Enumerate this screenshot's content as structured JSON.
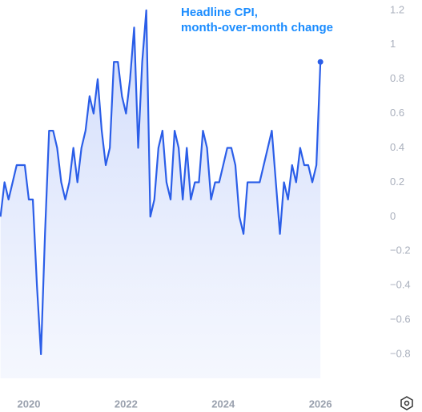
{
  "chart_data": {
    "type": "line",
    "title": [
      "Headline CPI,",
      "month-over-month change"
    ],
    "x": [
      2019.417,
      2019.5,
      2019.583,
      2019.667,
      2019.75,
      2019.833,
      2019.917,
      2020,
      2020.083,
      2020.167,
      2020.25,
      2020.333,
      2020.417,
      2020.5,
      2020.583,
      2020.667,
      2020.75,
      2020.833,
      2020.917,
      2021,
      2021.083,
      2021.167,
      2021.25,
      2021.333,
      2021.417,
      2021.5,
      2021.583,
      2021.667,
      2021.75,
      2021.833,
      2021.917,
      2022,
      2022.083,
      2022.167,
      2022.25,
      2022.333,
      2022.417,
      2022.5,
      2022.583,
      2022.667,
      2022.75,
      2022.833,
      2022.917,
      2023,
      2023.083,
      2023.167,
      2023.25,
      2023.333,
      2023.417,
      2023.5,
      2023.583,
      2023.667,
      2023.75,
      2023.833,
      2023.917,
      2024,
      2024.083,
      2024.167,
      2024.25,
      2024.333,
      2024.417,
      2024.5,
      2024.583,
      2024.667,
      2024.75,
      2024.833,
      2024.917,
      2025,
      2025.083,
      2025.167,
      2025.25,
      2025.333,
      2025.417,
      2025.5,
      2025.583,
      2025.667,
      2025.75,
      2025.833,
      2025.917,
      2026
    ],
    "series": [
      {
        "name": "Headline CPI",
        "color": "#2b5ee8",
        "values": [
          0,
          0.2,
          0.1,
          0.2,
          0.3,
          0.3,
          0.3,
          0.1,
          0.1,
          -0.4,
          -0.8,
          -0.1,
          0.5,
          0.5,
          0.4,
          0.2,
          0.1,
          0.2,
          0.4,
          0.2,
          0.4,
          0.5,
          0.7,
          0.6,
          0.8,
          0.5,
          0.3,
          0.4,
          0.9,
          0.9,
          0.7,
          0.6,
          0.8,
          1.1,
          0.4,
          0.9,
          1.2,
          0,
          0.1,
          0.4,
          0.5,
          0.2,
          0.1,
          0.5,
          0.4,
          0.1,
          0.4,
          0.1,
          0.2,
          0.2,
          0.5,
          0.4,
          0.1,
          0.2,
          0.2,
          0.3,
          0.4,
          0.4,
          0.3,
          0,
          -0.1,
          0.2,
          0.2,
          0.2,
          0.2,
          0.3,
          0.4,
          0.5,
          0.2,
          -0.1,
          0.2,
          0.1,
          0.3,
          0.2,
          0.4,
          0.3,
          0.3,
          0.2,
          0.3,
          0.9
        ]
      }
    ],
    "xlim": [
      2019.407,
      2028.09
    ],
    "xticks": [
      2020,
      2022,
      2024,
      2026
    ],
    "ylim": [
      -0.94,
      1.26
    ],
    "yticks": [
      {
        "value": -0.8,
        "label": "−0.8"
      },
      {
        "value": -0.6,
        "label": "−0.6"
      },
      {
        "value": -0.4,
        "label": "−0.4"
      },
      {
        "value": -0.2,
        "label": "−0.2"
      },
      0,
      0.2,
      0.4,
      0.6,
      0.8,
      1,
      1.2
    ],
    "grid": false
  }
}
